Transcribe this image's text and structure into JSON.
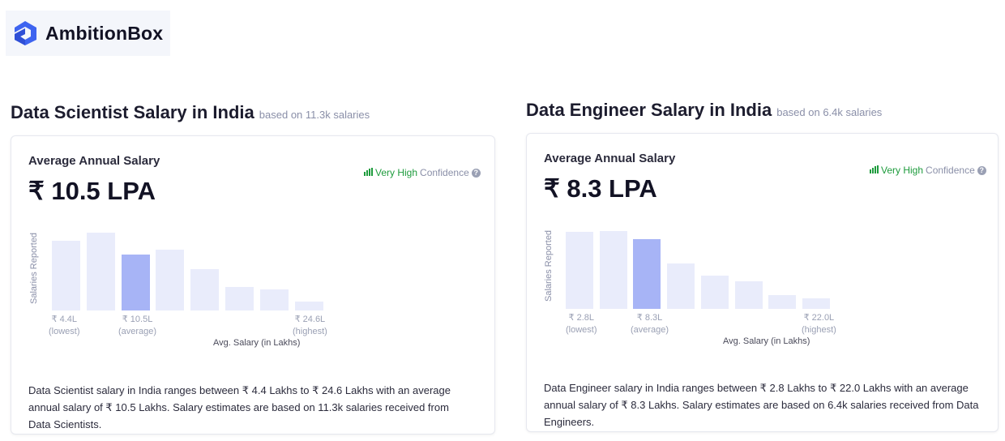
{
  "brand": {
    "name": "AmbitionBox",
    "color": "#3e64f0"
  },
  "cards": [
    {
      "title": "Data Scientist Salary in India",
      "based_on": "based on 11.3k salaries",
      "avg_label": "Average Annual Salary",
      "avg_value": "₹ 10.5 LPA",
      "confidence_level": "Very High",
      "confidence_word": "Confidence",
      "chart_data": {
        "type": "bar",
        "ylabel": "Salaries Reported",
        "xlabel": "Avg. Salary (in Lakhs)",
        "values": [
          86,
          96,
          69,
          75,
          51,
          29,
          26,
          11
        ],
        "highlight_index": 2,
        "ticks": [
          {
            "value": "₹ 4.4L",
            "note": "(lowest)"
          },
          {
            "value": "₹ 10.5L",
            "note": "(average)"
          },
          {
            "value": "₹ 24.6L",
            "note": "(highest)"
          }
        ]
      },
      "description": "Data Scientist salary in India ranges between ₹ 4.4 Lakhs to ₹ 24.6 Lakhs with an average annual salary of ₹ 10.5 Lakhs. Salary estimates are based on 11.3k salaries received from Data Scientists."
    },
    {
      "title": "Data Engineer Salary in India",
      "based_on": "based on 6.4k salaries",
      "avg_label": "Average Annual Salary",
      "avg_value": "₹ 8.3 LPA",
      "confidence_level": "Very High",
      "confidence_word": "Confidence",
      "chart_data": {
        "type": "bar",
        "ylabel": "Salaries Reported",
        "xlabel": "Avg. Salary (in Lakhs)",
        "values": [
          95,
          96,
          86,
          56,
          41,
          34,
          17,
          13
        ],
        "highlight_index": 2,
        "ticks": [
          {
            "value": "₹ 2.8L",
            "note": "(lowest)"
          },
          {
            "value": "₹ 8.3L",
            "note": "(average)"
          },
          {
            "value": "₹ 22.0L",
            "note": "(highest)"
          }
        ]
      },
      "description": "Data Engineer salary in India ranges between ₹ 2.8 Lakhs to ₹ 22.0 Lakhs with an average annual salary of ₹ 8.3 Lakhs. Salary estimates are based on 6.4k salaries received from Data Engineers."
    }
  ]
}
